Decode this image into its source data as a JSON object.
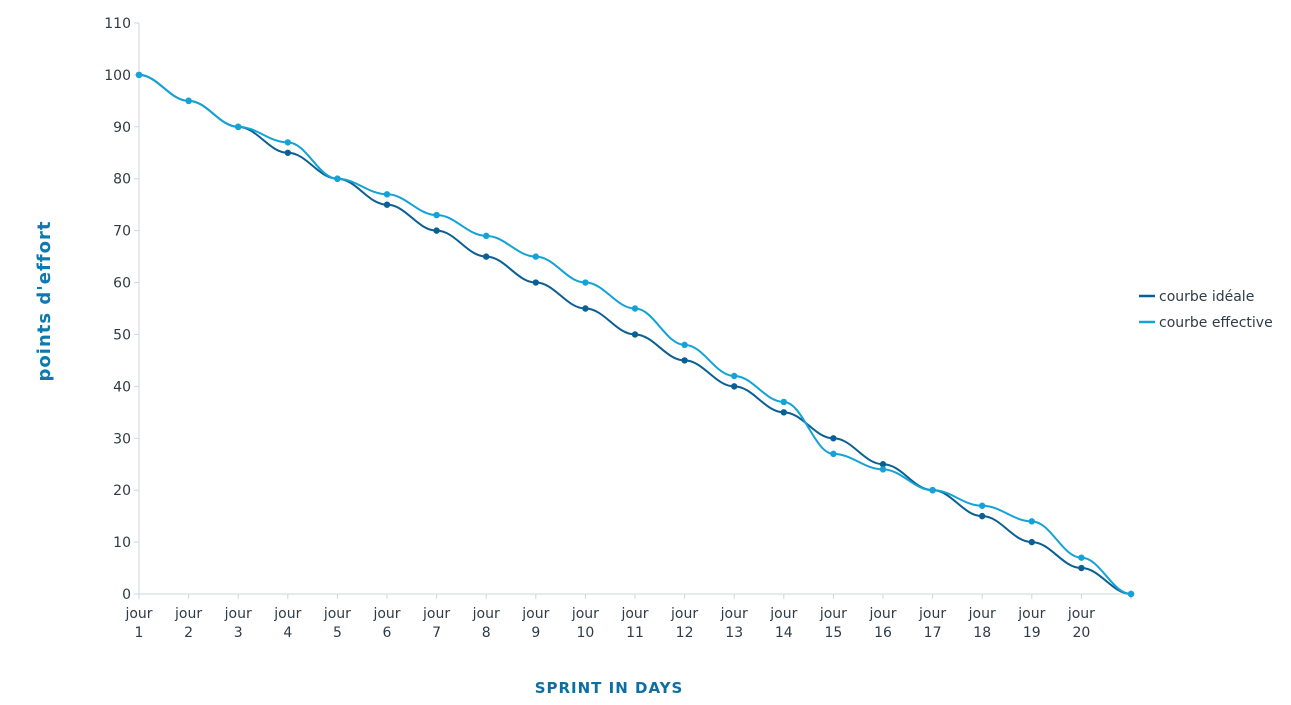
{
  "chart_data": {
    "type": "line",
    "title": "",
    "xlabel": "SPRINT IN DAYS",
    "ylabel": "points d'effort",
    "ylim": [
      0,
      110
    ],
    "y_ticks": [
      0,
      10,
      20,
      30,
      40,
      50,
      60,
      70,
      80,
      90,
      100,
      110
    ],
    "categories": [
      [
        "jour",
        "1"
      ],
      [
        "jour",
        "2"
      ],
      [
        "jour",
        "3"
      ],
      [
        "jour",
        "4"
      ],
      [
        "jour",
        "5"
      ],
      [
        "jour",
        "6"
      ],
      [
        "jour",
        "7"
      ],
      [
        "jour",
        "8"
      ],
      [
        "jour",
        "9"
      ],
      [
        "jour",
        "10"
      ],
      [
        "jour",
        "11"
      ],
      [
        "jour",
        "12"
      ],
      [
        "jour",
        "13"
      ],
      [
        "jour",
        "14"
      ],
      [
        "jour",
        "15"
      ],
      [
        "jour",
        "16"
      ],
      [
        "jour",
        "17"
      ],
      [
        "jour",
        "18"
      ],
      [
        "jour",
        "19"
      ],
      [
        "jour",
        "20"
      ],
      [
        "",
        ""
      ]
    ],
    "grid": false,
    "legend_position": "right",
    "series": [
      {
        "name": "courbe idéale",
        "color": "#0a5f94",
        "values": [
          100,
          95,
          90,
          85,
          80,
          75,
          70,
          65,
          60,
          55,
          50,
          45,
          40,
          35,
          30,
          25,
          20,
          15,
          10,
          5,
          0
        ]
      },
      {
        "name": "courbe effective",
        "color": "#13a3d6",
        "values": [
          100,
          95,
          90,
          87,
          80,
          77,
          73,
          69,
          65,
          60,
          55,
          48,
          42,
          37,
          27,
          24,
          20,
          17,
          14,
          7,
          0
        ]
      }
    ]
  }
}
